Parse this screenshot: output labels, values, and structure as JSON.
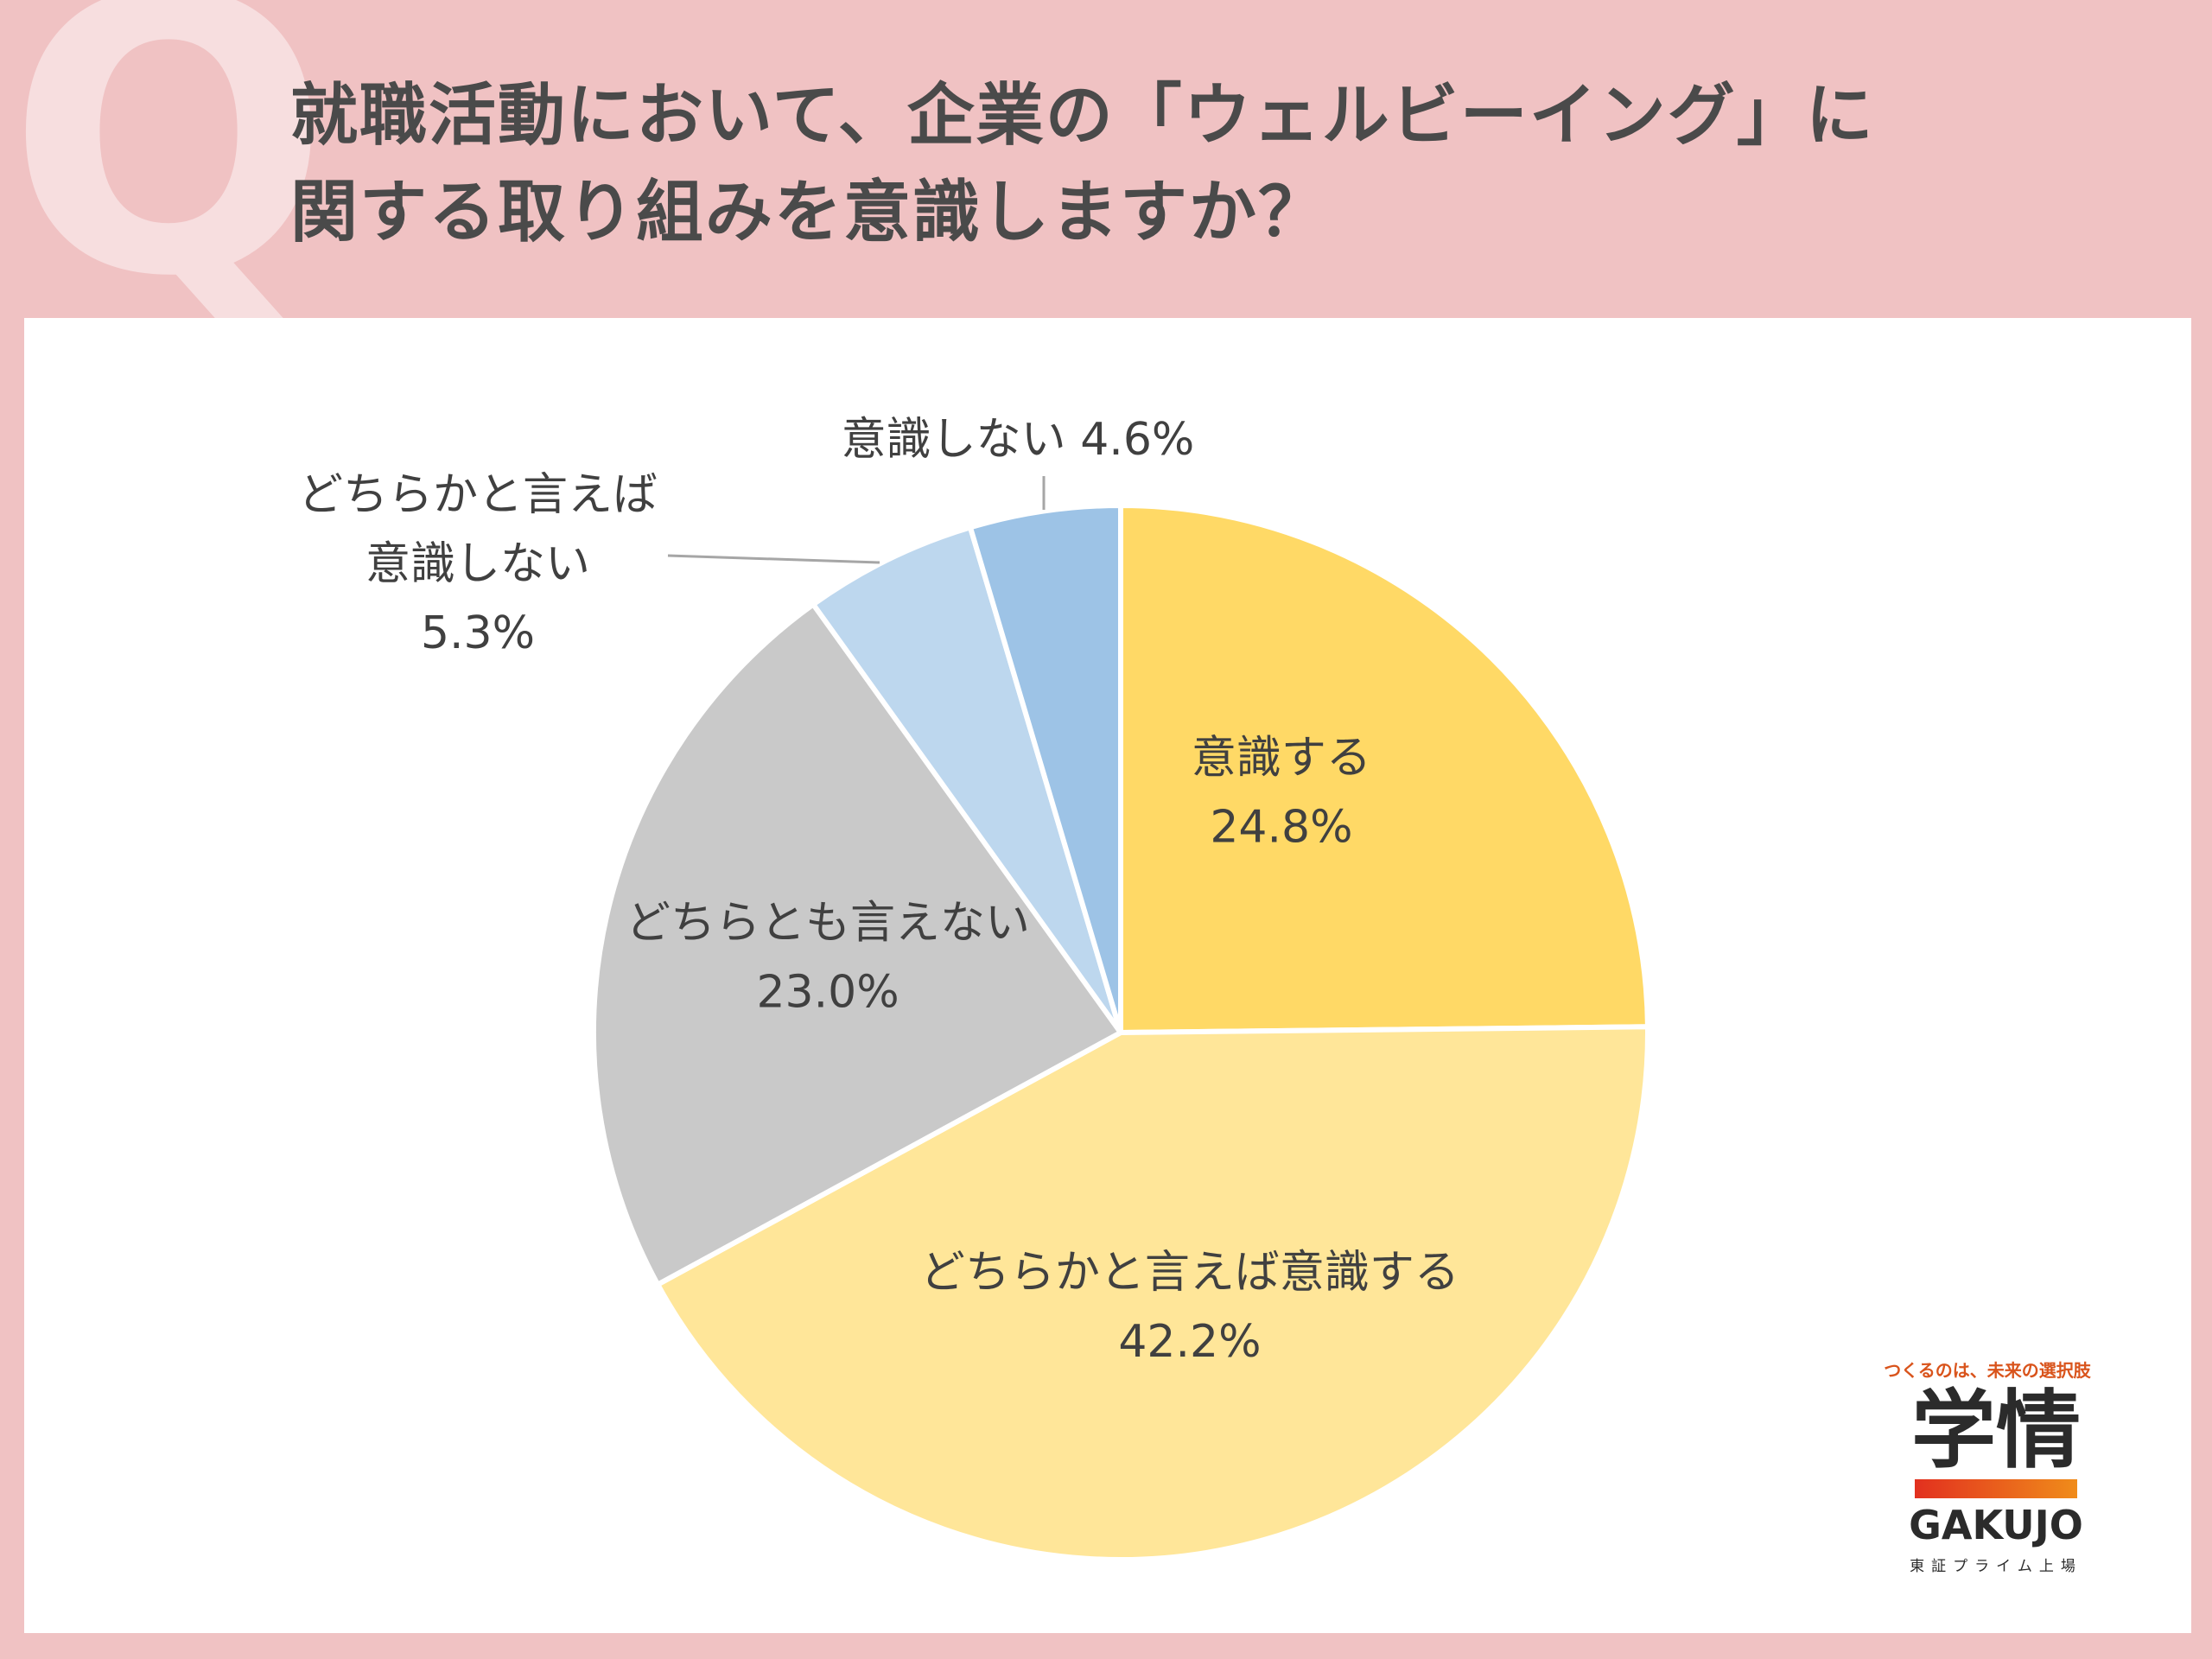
{
  "header": {
    "q_mark": "Q",
    "question_line1": "就職活動において、企業の「ウェルビーイング」に",
    "question_line2": "関する取り組みを意識しますか？"
  },
  "chart_data": {
    "type": "pie",
    "title": "就職活動において、企業の「ウェルビーイング」に関する取り組みを意識しますか？",
    "unit": "%",
    "start": "12 o'clock",
    "direction": "clockwise",
    "slices": [
      {
        "label": "意識する",
        "value": 24.8,
        "display": "24.8%",
        "color": "#ffd966"
      },
      {
        "label": "どちらかと言えば意識する",
        "value": 42.2,
        "display": "42.2%",
        "color": "#ffe699"
      },
      {
        "label": "どちらとも言えない",
        "value": 23.0,
        "display": "23.0%",
        "color": "#c9c9c9"
      },
      {
        "label": "どちらかと言えば意識しない",
        "value": 5.3,
        "display": "5.3%",
        "color": "#bdd7ee",
        "label_lines": [
          "どちらかと言えば",
          "意識しない"
        ]
      },
      {
        "label": "意識しない",
        "value": 4.6,
        "display": "4.6%",
        "color": "#9dc3e6"
      }
    ]
  },
  "logo": {
    "tagline": "つくるのは、未来の選択肢",
    "name_jp": "学情",
    "name_en": "GAKUJO",
    "subtitle": "東証プライム上場"
  }
}
